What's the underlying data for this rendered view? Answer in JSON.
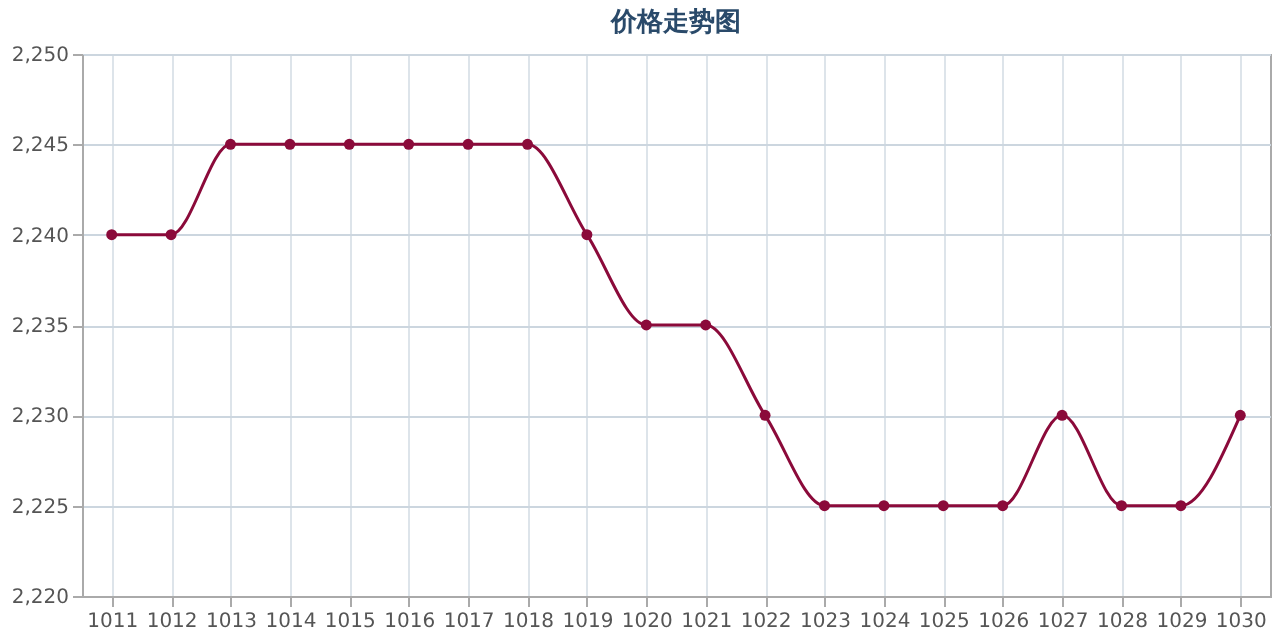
{
  "chart_data": {
    "type": "line",
    "title": "价格走势图",
    "categories": [
      "1011",
      "1012",
      "1013",
      "1014",
      "1015",
      "1016",
      "1017",
      "1018",
      "1019",
      "1020",
      "1021",
      "1022",
      "1023",
      "1024",
      "1025",
      "1026",
      "1027",
      "1028",
      "1029",
      "1030"
    ],
    "series": [
      {
        "color": "#8b0a3a",
        "values": [
          2240,
          2240,
          2245,
          2245,
          2245,
          2245,
          2245,
          2245,
          2240,
          2235,
          2235,
          2230,
          2225,
          2225,
          2225,
          2225,
          2230,
          2225,
          2225,
          2230
        ]
      }
    ],
    "ylim": [
      2220,
      2250
    ],
    "yticks": [
      {
        "value": 2220,
        "label": "2,220"
      },
      {
        "value": 2225,
        "label": "2,225"
      },
      {
        "value": 2230,
        "label": "2,230"
      },
      {
        "value": 2235,
        "label": "2,235"
      },
      {
        "value": 2240,
        "label": "2,240"
      },
      {
        "value": 2245,
        "label": "2,245"
      },
      {
        "value": 2250,
        "label": "2,250"
      }
    ],
    "grid": true,
    "marker": "circle",
    "line_style": "solid",
    "legend": false
  }
}
